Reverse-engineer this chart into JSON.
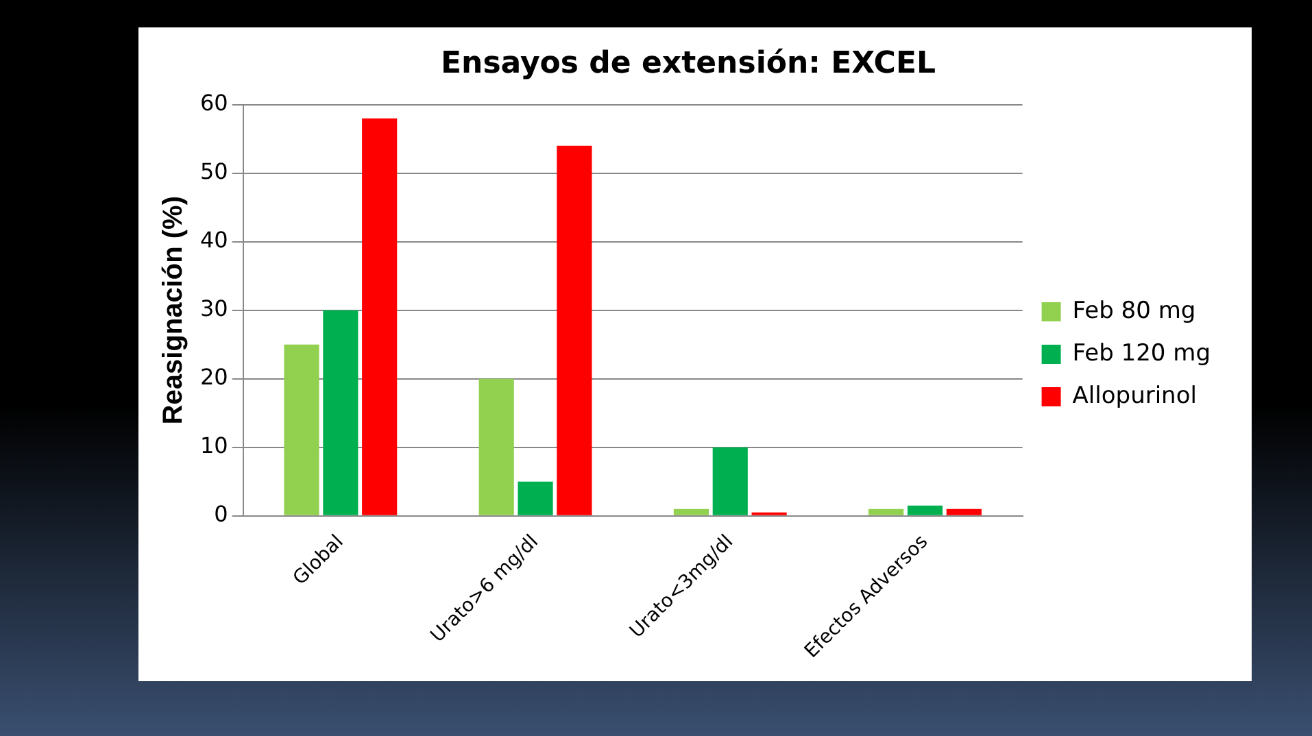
{
  "chart_data": {
    "type": "bar",
    "title": "Ensayos de extensión: EXCEL",
    "ylabel": "Reasignación (%)",
    "categories": [
      "Global",
      "Urato>6 mg/dl",
      "Urato<3mg/dl",
      "Efectos Adversos"
    ],
    "series": [
      {
        "name": "Feb 80 mg",
        "color": "#92d050",
        "values": [
          25,
          20,
          1,
          1
        ]
      },
      {
        "name": "Feb 120 mg",
        "color": "#00b050",
        "values": [
          30,
          5,
          10,
          1.5
        ]
      },
      {
        "name": "Allopurinol",
        "color": "#ff0000",
        "values": [
          58,
          54,
          0.5,
          1
        ]
      }
    ],
    "ylim": [
      0,
      60
    ],
    "yticks": [
      0,
      10,
      20,
      30,
      40,
      50,
      60
    ],
    "grid": "y",
    "legend": "right"
  }
}
